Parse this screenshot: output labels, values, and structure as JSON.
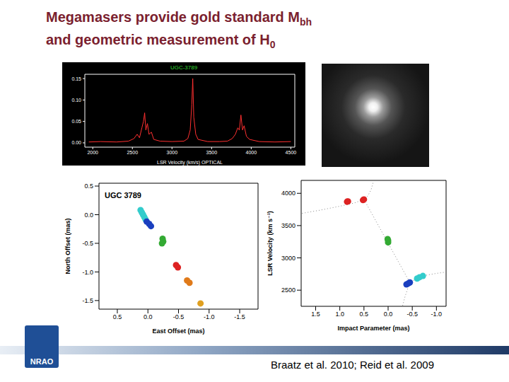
{
  "slide": {
    "title_lines": [
      {
        "text": "Megamasers provide gold standard M",
        "subscript": "bh"
      },
      {
        "text": "and geometric measurement of H",
        "subscript": "0"
      }
    ],
    "citation": "Braatz et al. 2010; Reid et al. 2009",
    "logo": "NRAO"
  },
  "chart_data": [
    {
      "type": "line",
      "title": "UGC-3789",
      "x_label": "LSR Velocity (km/s) OPTICAL",
      "x": [
        1950,
        2100,
        2300,
        2450,
        2520,
        2560,
        2590,
        2620,
        2640,
        2655,
        2670,
        2690,
        2710,
        2740,
        2770,
        2850,
        3000,
        3150,
        3200,
        3230,
        3250,
        3262,
        3275,
        3300,
        3330,
        3450,
        3600,
        3700,
        3760,
        3800,
        3830,
        3850,
        3870,
        3890,
        3910,
        3940,
        3980,
        4100,
        4300,
        4500
      ],
      "values": [
        0.002,
        0.003,
        0.002,
        0.004,
        0.01,
        0.02,
        0.012,
        0.035,
        0.05,
        0.07,
        0.03,
        0.045,
        0.02,
        0.025,
        0.008,
        0.004,
        0.003,
        0.004,
        0.01,
        0.03,
        0.09,
        0.15,
        0.06,
        0.02,
        0.008,
        0.003,
        0.003,
        0.004,
        0.01,
        0.02,
        0.035,
        0.03,
        0.065,
        0.03,
        0.04,
        0.015,
        0.008,
        0.003,
        0.002,
        0.003
      ],
      "color": "#ff3030",
      "xlim": [
        1900,
        4550
      ],
      "xticks": [
        2000,
        2500,
        3000,
        3500,
        4000,
        4500
      ],
      "ylim": [
        -0.01,
        0.16
      ],
      "yticks": [
        {
          "value": 0,
          "label": "0.00"
        },
        {
          "value": 0.05,
          "label": "0.05"
        },
        {
          "value": 0.1,
          "label": "0.10"
        },
        {
          "value": 0.15,
          "label": "0.15"
        }
      ],
      "grid": false
    },
    {
      "type": "scatter",
      "title": "UGC 3789",
      "x_label": "East Offset (mas)",
      "y_label": "North Offset (mas)",
      "xlim": [
        0.8,
        -1.8
      ],
      "xticks": [
        0.5,
        {
          "value": 0,
          "label": "0.0"
        },
        -0.5,
        {
          "value": -1,
          "label": "-1.0"
        },
        -1.5
      ],
      "ylim": [
        -1.65,
        0.55
      ],
      "yticks": [
        0.5,
        {
          "value": 0,
          "label": "0.0"
        },
        -0.5,
        {
          "value": -1,
          "label": "-1.0"
        },
        -1.5
      ],
      "grid": false,
      "series": [
        {
          "color": "#33cccc",
          "marker": "circle",
          "x": [
            0.12,
            0.1,
            0.08,
            0.06,
            0.04
          ],
          "values": [
            0.08,
            0.04,
            0.0,
            -0.04,
            -0.08
          ]
        },
        {
          "color": "#1a3fbf",
          "marker": "circle",
          "x": [
            0.02,
            -0.02,
            -0.05
          ],
          "values": [
            -0.12,
            -0.16,
            -0.2
          ]
        },
        {
          "color": "#33aa33",
          "marker": "circle",
          "x": [
            -0.24,
            -0.25,
            -0.23
          ],
          "values": [
            -0.42,
            -0.47,
            -0.5
          ]
        },
        {
          "color": "#dd2222",
          "marker": "circle",
          "x": [
            -0.46,
            -0.49
          ],
          "values": [
            -0.88,
            -0.92
          ]
        },
        {
          "color": "#e07a1a",
          "marker": "circle",
          "x": [
            -0.64,
            -0.68
          ],
          "values": [
            -1.15,
            -1.19
          ]
        },
        {
          "color": "#e0a020",
          "marker": "circle",
          "x": [
            -0.86
          ],
          "values": [
            -1.55
          ]
        }
      ]
    },
    {
      "type": "scatter",
      "x_label": "Impact Parameter (mas)",
      "y_label": "LSR Velocity (km s⁻¹)",
      "xlim": [
        1.8,
        -1.2
      ],
      "xticks": [
        1.5,
        {
          "value": 1,
          "label": "1.0"
        },
        0.5,
        {
          "value": 0,
          "label": "0.0"
        },
        -0.5,
        {
          "value": -1,
          "label": "-1.0"
        }
      ],
      "ylim": [
        2250,
        4200
      ],
      "yticks": [
        2500,
        3000,
        3500,
        4000
      ],
      "grid": false,
      "series": [
        {
          "type": "line",
          "line_style": "dotted",
          "color": "#888888",
          "x": [
            1.78,
            1.4,
            1.0,
            0.7,
            0.5,
            0.42,
            0.35,
            0.3
          ],
          "values": [
            3690,
            3740,
            3800,
            3850,
            3905,
            3960,
            4060,
            4195
          ]
        },
        {
          "type": "line",
          "line_style": "dotted",
          "color": "#888888",
          "x": [
            0.5,
            -0.45
          ],
          "values": [
            3905,
            2620
          ]
        },
        {
          "type": "line",
          "line_style": "dotted",
          "color": "#888888",
          "x": [
            -0.3,
            -0.35,
            -0.45,
            -0.7,
            -1.0,
            -1.2
          ],
          "values": [
            2260,
            2400,
            2620,
            2720,
            2760,
            2780
          ]
        },
        {
          "color": "#dd2222",
          "marker": "circle",
          "x": [
            0.85,
            0.83,
            0.52,
            0.5
          ],
          "values": [
            3870,
            3875,
            3895,
            3905
          ]
        },
        {
          "color": "#33aa33",
          "marker": "circle",
          "x": [
            0.0,
            0.0,
            0.01
          ],
          "values": [
            3240,
            3270,
            3290
          ]
        },
        {
          "color": "#1a3fbf",
          "marker": "circle",
          "x": [
            -0.38,
            -0.42,
            -0.45
          ],
          "values": [
            2590,
            2605,
            2620
          ]
        },
        {
          "color": "#33cccc",
          "marker": "circle",
          "x": [
            -0.6,
            -0.65,
            -0.72
          ],
          "values": [
            2680,
            2700,
            2720
          ]
        }
      ]
    }
  ]
}
